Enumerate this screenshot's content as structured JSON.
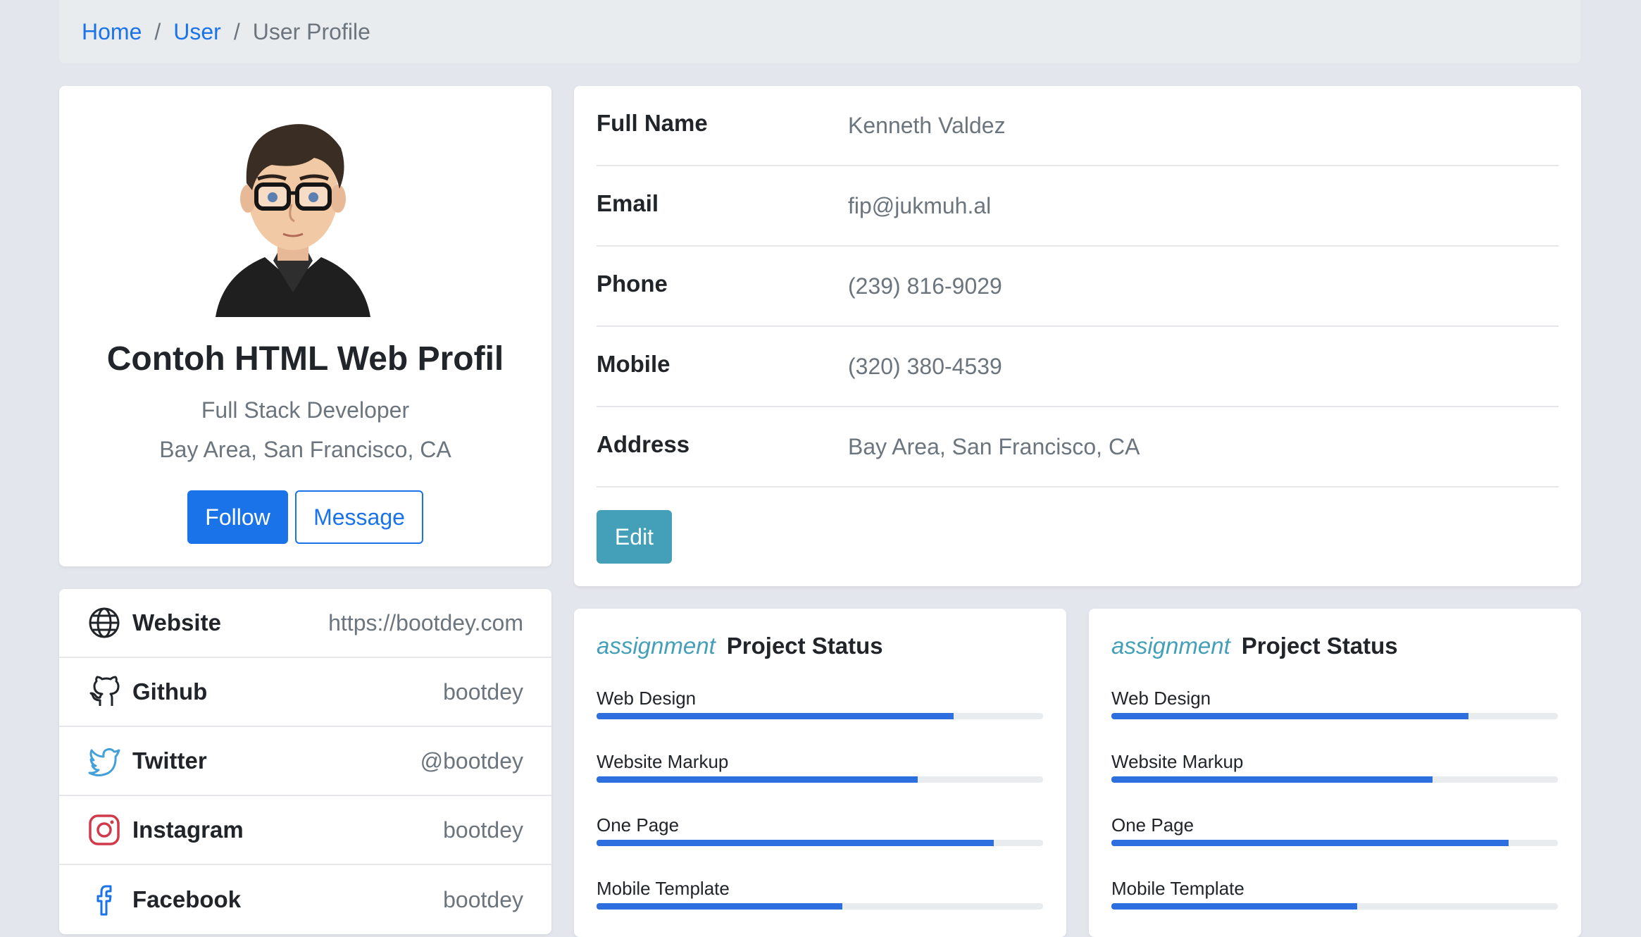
{
  "breadcrumb": {
    "home": "Home",
    "user": "User",
    "current": "User Profile"
  },
  "profile": {
    "name": "Contoh HTML Web Profil",
    "role": "Full Stack Developer",
    "location": "Bay Area, San Francisco, CA",
    "follow_label": "Follow",
    "message_label": "Message"
  },
  "social": {
    "items": [
      {
        "label": "Website",
        "value": "https://bootdey.com",
        "icon": "globe-icon"
      },
      {
        "label": "Github",
        "value": "bootdey",
        "icon": "github-icon"
      },
      {
        "label": "Twitter",
        "value": "@bootdey",
        "icon": "twitter-icon"
      },
      {
        "label": "Instagram",
        "value": "bootdey",
        "icon": "instagram-icon"
      },
      {
        "label": "Facebook",
        "value": "bootdey",
        "icon": "facebook-icon"
      }
    ]
  },
  "info": {
    "rows": [
      {
        "label": "Full Name",
        "value": "Kenneth Valdez"
      },
      {
        "label": "Email",
        "value": "fip@jukmuh.al"
      },
      {
        "label": "Phone",
        "value": "(239) 816-9029"
      },
      {
        "label": "Mobile",
        "value": "(320) 380-4539"
      },
      {
        "label": "Address",
        "value": "Bay Area, San Francisco, CA"
      }
    ],
    "edit_label": "Edit"
  },
  "projects": [
    {
      "tag": "assignment",
      "title": "Project Status",
      "items": [
        {
          "label": "Web Design",
          "progress": 80
        },
        {
          "label": "Website Markup",
          "progress": 72
        },
        {
          "label": "One Page",
          "progress": 89
        },
        {
          "label": "Mobile Template",
          "progress": 55
        }
      ]
    },
    {
      "tag": "assignment",
      "title": "Project Status",
      "items": [
        {
          "label": "Web Design",
          "progress": 80
        },
        {
          "label": "Website Markup",
          "progress": 72
        },
        {
          "label": "One Page",
          "progress": 89
        },
        {
          "label": "Mobile Template",
          "progress": 55
        }
      ]
    }
  ],
  "colors": {
    "primary": "#1a73e8",
    "accent": "#44a0b8",
    "progress": "#2e6fe0"
  }
}
